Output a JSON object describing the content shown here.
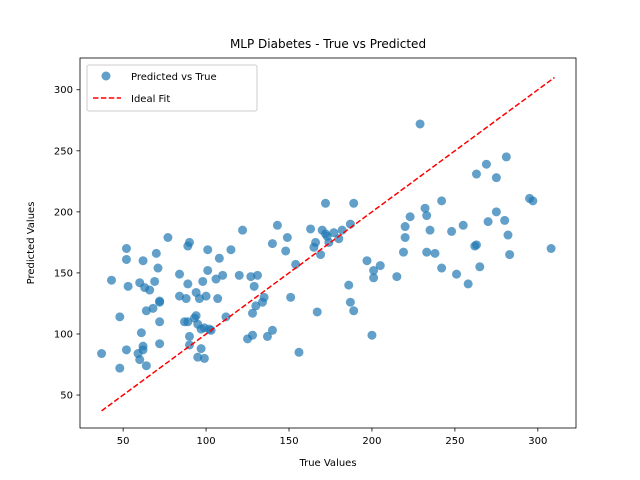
{
  "chart_data": {
    "type": "scatter",
    "title": "MLP Diabetes - True vs Predicted",
    "xlabel": "True Values",
    "ylabel": "Predicted Values",
    "xlim": [
      24,
      323
    ],
    "ylim": [
      23,
      326
    ],
    "xticks": [
      "50",
      "100",
      "150",
      "200",
      "250",
      "300"
    ],
    "yticks": [
      "50",
      "100",
      "150",
      "200",
      "250",
      "300"
    ],
    "grid": false,
    "legend": {
      "placement": "top-left",
      "entries": [
        "Predicted vs True",
        "Ideal Fit"
      ]
    },
    "colors": {
      "points": "#1f77b4",
      "ideal_line": "#ff0000"
    },
    "series": [
      {
        "name": "Predicted vs True",
        "type": "scatter",
        "points": [
          [
            37,
            84
          ],
          [
            43,
            144
          ],
          [
            48,
            114
          ],
          [
            48,
            72
          ],
          [
            52,
            170
          ],
          [
            52,
            161
          ],
          [
            52,
            87
          ],
          [
            53,
            139
          ],
          [
            59,
            84
          ],
          [
            60,
            79
          ],
          [
            60,
            142
          ],
          [
            61,
            101
          ],
          [
            62,
            160
          ],
          [
            62,
            87
          ],
          [
            62,
            90
          ],
          [
            63,
            138
          ],
          [
            64,
            119
          ],
          [
            64,
            74
          ],
          [
            66,
            136
          ],
          [
            68,
            121
          ],
          [
            69,
            143
          ],
          [
            70,
            166
          ],
          [
            71,
            154
          ],
          [
            72,
            127
          ],
          [
            72,
            126
          ],
          [
            72,
            110
          ],
          [
            72,
            92
          ],
          [
            77,
            179
          ],
          [
            84,
            149
          ],
          [
            84,
            131
          ],
          [
            87,
            110
          ],
          [
            88,
            129
          ],
          [
            89,
            110
          ],
          [
            89,
            141
          ],
          [
            89,
            172
          ],
          [
            90,
            98
          ],
          [
            90,
            91
          ],
          [
            90,
            175
          ],
          [
            93,
            113
          ],
          [
            94,
            134
          ],
          [
            94,
            115
          ],
          [
            95,
            81
          ],
          [
            95,
            108
          ],
          [
            96,
            129
          ],
          [
            97,
            104
          ],
          [
            97,
            88
          ],
          [
            98,
            143
          ],
          [
            99,
            80
          ],
          [
            99,
            105
          ],
          [
            100,
            131
          ],
          [
            101,
            169
          ],
          [
            101,
            152
          ],
          [
            102,
            104
          ],
          [
            103,
            103
          ],
          [
            106,
            145
          ],
          [
            107,
            129
          ],
          [
            108,
            162
          ],
          [
            110,
            148
          ],
          [
            112,
            114
          ],
          [
            115,
            169
          ],
          [
            120,
            148
          ],
          [
            122,
            185
          ],
          [
            125,
            96
          ],
          [
            127,
            147
          ],
          [
            128,
            117
          ],
          [
            128,
            99
          ],
          [
            129,
            139
          ],
          [
            130,
            123
          ],
          [
            131,
            148
          ],
          [
            134,
            126
          ],
          [
            135,
            130
          ],
          [
            137,
            98
          ],
          [
            140,
            103
          ],
          [
            140,
            174
          ],
          [
            143,
            189
          ],
          [
            148,
            168
          ],
          [
            149,
            179
          ],
          [
            151,
            130
          ],
          [
            154,
            157
          ],
          [
            156,
            85
          ],
          [
            163,
            186
          ],
          [
            165,
            171
          ],
          [
            166,
            175
          ],
          [
            167,
            118
          ],
          [
            169,
            165
          ],
          [
            170,
            185
          ],
          [
            172,
            182
          ],
          [
            172,
            207
          ],
          [
            173,
            180
          ],
          [
            174,
            175
          ],
          [
            177,
            183
          ],
          [
            180,
            178
          ],
          [
            182,
            185
          ],
          [
            186,
            140
          ],
          [
            187,
            190
          ],
          [
            187,
            126
          ],
          [
            189,
            119
          ],
          [
            189,
            207
          ],
          [
            197,
            160
          ],
          [
            200,
            99
          ],
          [
            201,
            146
          ],
          [
            201,
            152
          ],
          [
            205,
            156
          ],
          [
            215,
            147
          ],
          [
            219,
            167
          ],
          [
            220,
            188
          ],
          [
            220,
            179
          ],
          [
            223,
            196
          ],
          [
            229,
            272
          ],
          [
            232,
            203
          ],
          [
            233,
            167
          ],
          [
            233,
            197
          ],
          [
            235,
            185
          ],
          [
            238,
            166
          ],
          [
            242,
            154
          ],
          [
            242,
            209
          ],
          [
            248,
            184
          ],
          [
            251,
            149
          ],
          [
            255,
            189
          ],
          [
            258,
            141
          ],
          [
            262,
            172
          ],
          [
            263,
            173
          ],
          [
            263,
            231
          ],
          [
            265,
            155
          ],
          [
            269,
            239
          ],
          [
            270,
            192
          ],
          [
            275,
            200
          ],
          [
            275,
            228
          ],
          [
            280,
            193
          ],
          [
            281,
            245
          ],
          [
            282,
            181
          ],
          [
            283,
            165
          ],
          [
            295,
            211
          ],
          [
            297,
            209
          ],
          [
            308,
            170
          ]
        ]
      },
      {
        "name": "Ideal Fit",
        "type": "line",
        "style": "dashed",
        "x": [
          37,
          310
        ],
        "y": [
          37,
          310
        ]
      }
    ]
  }
}
